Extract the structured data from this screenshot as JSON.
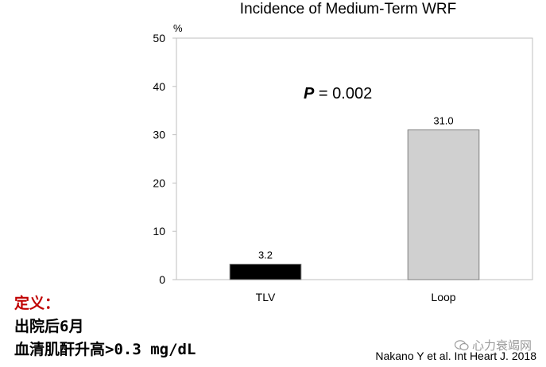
{
  "chart_data": {
    "type": "bar",
    "title": "Incidence of Medium-Term WRF",
    "ylabel": "%",
    "xlabel": "",
    "categories": [
      "TLV",
      "Loop"
    ],
    "values": [
      3.2,
      31.0
    ],
    "value_labels": [
      "3.2",
      "31.0"
    ],
    "bar_colors": [
      "#000000",
      "#d0d0d0"
    ],
    "ylim": [
      0,
      50
    ],
    "yticks": [
      "0",
      "10",
      "20",
      "30",
      "40",
      "50"
    ],
    "annotation": {
      "italic": "P",
      "text": " = 0.002"
    },
    "grid": false,
    "legend": "none"
  },
  "notes": {
    "heading": "定义：",
    "line1": "出院后6月",
    "line2": "血清肌酐升高>0.3 mg/dL"
  },
  "citation": "Nakano Y et al. Int Heart J. 2018",
  "watermark": "心力衰竭网"
}
